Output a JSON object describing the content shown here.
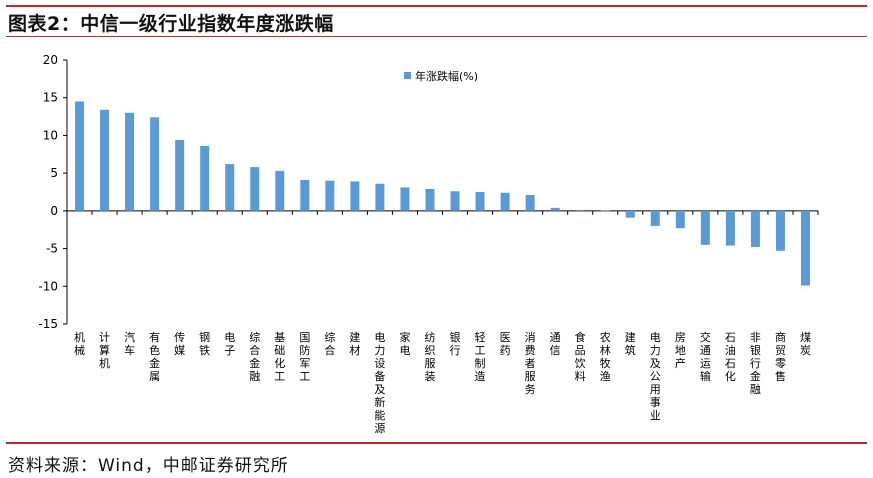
{
  "header": {
    "title": "图表2：中信一级行业指数年度涨跌幅"
  },
  "footer": {
    "source": "资料来源：Wind，中邮证券研究所"
  },
  "colors": {
    "bar": "#5b9bd5",
    "rule": "#c0272d"
  },
  "chart_data": {
    "type": "bar",
    "title": "",
    "xlabel": "",
    "ylabel": "",
    "ylim": [
      -15,
      20
    ],
    "yticks": [
      20,
      15,
      10,
      5,
      0,
      -5,
      -10,
      -15
    ],
    "grid": false,
    "legend": {
      "position": "top-center",
      "entries": [
        "年涨跌幅(%)"
      ]
    },
    "categories": [
      "机械",
      "计算机",
      "汽车",
      "有色金属",
      "传媒",
      "钢铁",
      "电子",
      "综合金融",
      "基础化工",
      "国防军工",
      "综合",
      "建材",
      "电力设备及新能源",
      "家电",
      "纺织服装",
      "银行",
      "轻工制造",
      "医药",
      "消费者服务",
      "通信",
      "食品饮料",
      "农林牧渔",
      "建筑",
      "电力及公用事业",
      "房地产",
      "交通运输",
      "石油石化",
      "非银行金融",
      "商贸零售",
      "煤炭"
    ],
    "series": [
      {
        "name": "年涨跌幅(%)",
        "values": [
          14.5,
          13.4,
          13.0,
          12.4,
          9.4,
          8.6,
          6.2,
          5.8,
          5.3,
          4.1,
          4.0,
          3.9,
          3.6,
          3.1,
          2.9,
          2.6,
          2.5,
          2.4,
          2.1,
          0.4,
          0.1,
          0.05,
          -0.9,
          -2.0,
          -2.3,
          -4.5,
          -4.6,
          -4.8,
          -5.3,
          -9.9
        ]
      }
    ]
  }
}
